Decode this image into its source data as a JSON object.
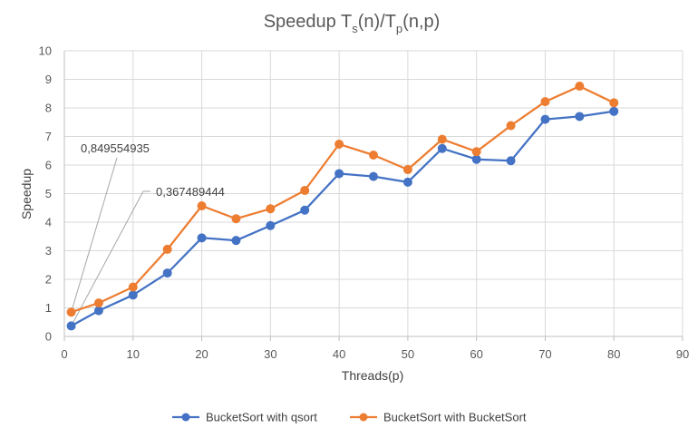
{
  "chart_data": {
    "type": "line",
    "title_main": "Speedup T",
    "title_sub1": "s",
    "title_mid": "(n)/T",
    "title_sub2": "p",
    "title_end": "(n,p)",
    "xlabel": "Threads(p)",
    "ylabel": "Speedup",
    "xlim": [
      0,
      90
    ],
    "ylim": [
      0,
      10
    ],
    "xticks": [
      0,
      10,
      20,
      30,
      40,
      50,
      60,
      70,
      80,
      90
    ],
    "yticks": [
      0,
      1,
      2,
      3,
      4,
      5,
      6,
      7,
      8,
      9,
      10
    ],
    "grid": true,
    "legend_position": "bottom",
    "x": [
      1,
      5,
      10,
      15,
      20,
      25,
      30,
      35,
      40,
      45,
      50,
      55,
      60,
      65,
      70,
      75,
      80
    ],
    "series": [
      {
        "name": "BucketSort with qsort",
        "color": "#4472C4",
        "values": [
          0.367489444,
          0.9,
          1.45,
          2.22,
          3.45,
          3.36,
          3.88,
          4.42,
          5.7,
          5.6,
          5.4,
          6.58,
          6.2,
          6.15,
          7.6,
          7.7,
          7.88
        ]
      },
      {
        "name": "BucketSort with BucketSort",
        "color": "#ED7D31",
        "values": [
          0.849554935,
          1.17,
          1.73,
          3.05,
          4.57,
          4.12,
          4.47,
          5.11,
          6.73,
          6.35,
          5.84,
          6.9,
          6.47,
          7.38,
          8.22,
          8.76,
          8.18
        ]
      }
    ],
    "annotations": [
      {
        "text": "0,849554935",
        "series": 1,
        "point": 0
      },
      {
        "text": "0,367489444",
        "series": 0,
        "point": 0
      }
    ]
  }
}
